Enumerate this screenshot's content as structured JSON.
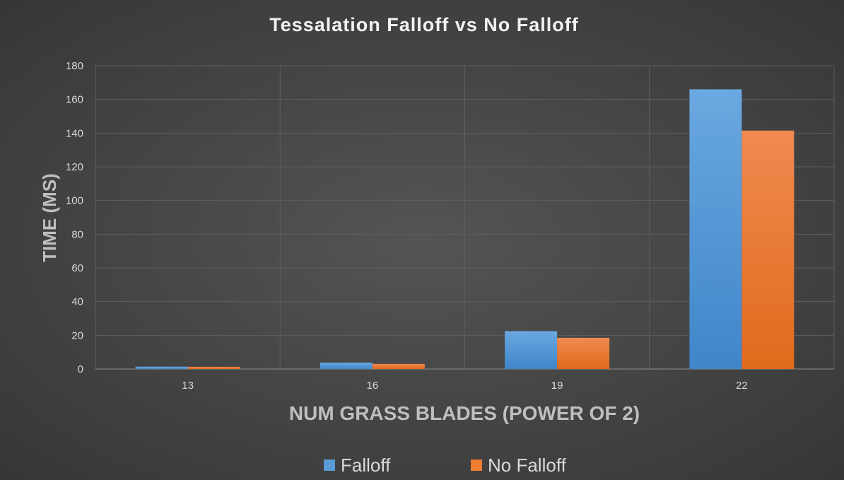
{
  "chart_data": {
    "type": "bar",
    "title": "Tessalation Falloff vs No Falloff",
    "xlabel": "NUM GRASS BLADES (POWER OF 2)",
    "ylabel": "TIME (MS)",
    "categories": [
      "13",
      "16",
      "19",
      "22"
    ],
    "ylim": [
      0,
      180
    ],
    "yticks": [
      0,
      20,
      40,
      60,
      80,
      100,
      120,
      140,
      160,
      180
    ],
    "grid": true,
    "legend_position": "bottom",
    "series": [
      {
        "name": "Falloff",
        "color": "#5b9bd5",
        "values": [
          1.4,
          3.8,
          22.5,
          166
        ]
      },
      {
        "name": "No Falloff",
        "color": "#ed7d31",
        "values": [
          1.3,
          3.0,
          18.5,
          141.5
        ]
      }
    ]
  }
}
